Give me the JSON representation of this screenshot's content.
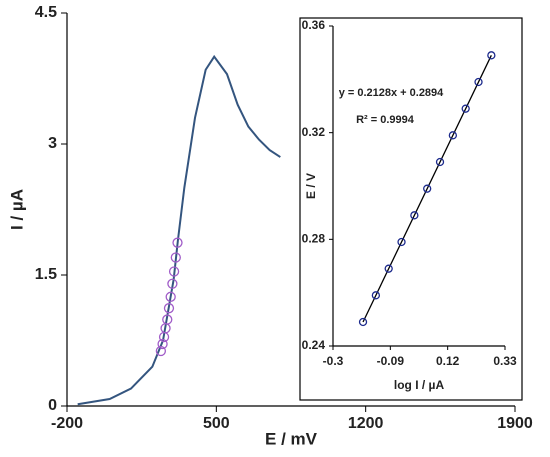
{
  "chart_data": [
    {
      "type": "line",
      "xlabel": "E / mV",
      "ylabel": "I / µA",
      "xlim": [
        -200,
        1900
      ],
      "xticks": [
        -200,
        500,
        1200,
        1900
      ],
      "ylim": [
        0,
        4.5
      ],
      "yticks": [
        0,
        1.5,
        3,
        4.5
      ],
      "series": [
        {
          "mode": "line",
          "color": "#34557f",
          "x": [
            -150,
            0,
            100,
            200,
            250,
            300,
            320,
            350,
            400,
            450,
            490,
            550,
            600,
            650,
            700,
            750,
            800
          ],
          "values": [
            0.02,
            0.08,
            0.2,
            0.45,
            0.75,
            1.45,
            1.9,
            2.5,
            3.3,
            3.85,
            4.0,
            3.8,
            3.45,
            3.2,
            3.05,
            2.93,
            2.85
          ]
        },
        {
          "mode": "markers",
          "color": "#a05cc8",
          "x": [
            240,
            248,
            255,
            262,
            270,
            278,
            286,
            294,
            302,
            310,
            318
          ],
          "values": [
            0.63,
            0.71,
            0.79,
            0.89,
            0.99,
            1.12,
            1.25,
            1.4,
            1.54,
            1.7,
            1.87
          ]
        }
      ]
    },
    {
      "type": "scatter",
      "xlabel": "log I / µA",
      "ylabel": "E / V",
      "xlim": [
        -0.3,
        0.33
      ],
      "xticks": [
        -0.3,
        -0.09,
        0.12,
        0.33
      ],
      "ylim": [
        0.24,
        0.36
      ],
      "yticks": [
        0.24,
        0.28,
        0.32,
        0.36
      ],
      "annotations": [
        "y = 0.2128x + 0.2894",
        "R² = 0.9994"
      ],
      "series": [
        {
          "mode": "line",
          "color": "#000000",
          "x": [
            -0.19,
            0.28
          ],
          "values": [
            0.249,
            0.349
          ]
        },
        {
          "mode": "markers",
          "color": "#1c2a8c",
          "x": [
            -0.19,
            -0.143,
            -0.096,
            -0.049,
            -0.002,
            0.045,
            0.092,
            0.139,
            0.186,
            0.233,
            0.28
          ],
          "values": [
            0.249,
            0.259,
            0.269,
            0.279,
            0.289,
            0.299,
            0.309,
            0.319,
            0.329,
            0.339,
            0.349
          ]
        }
      ]
    }
  ]
}
